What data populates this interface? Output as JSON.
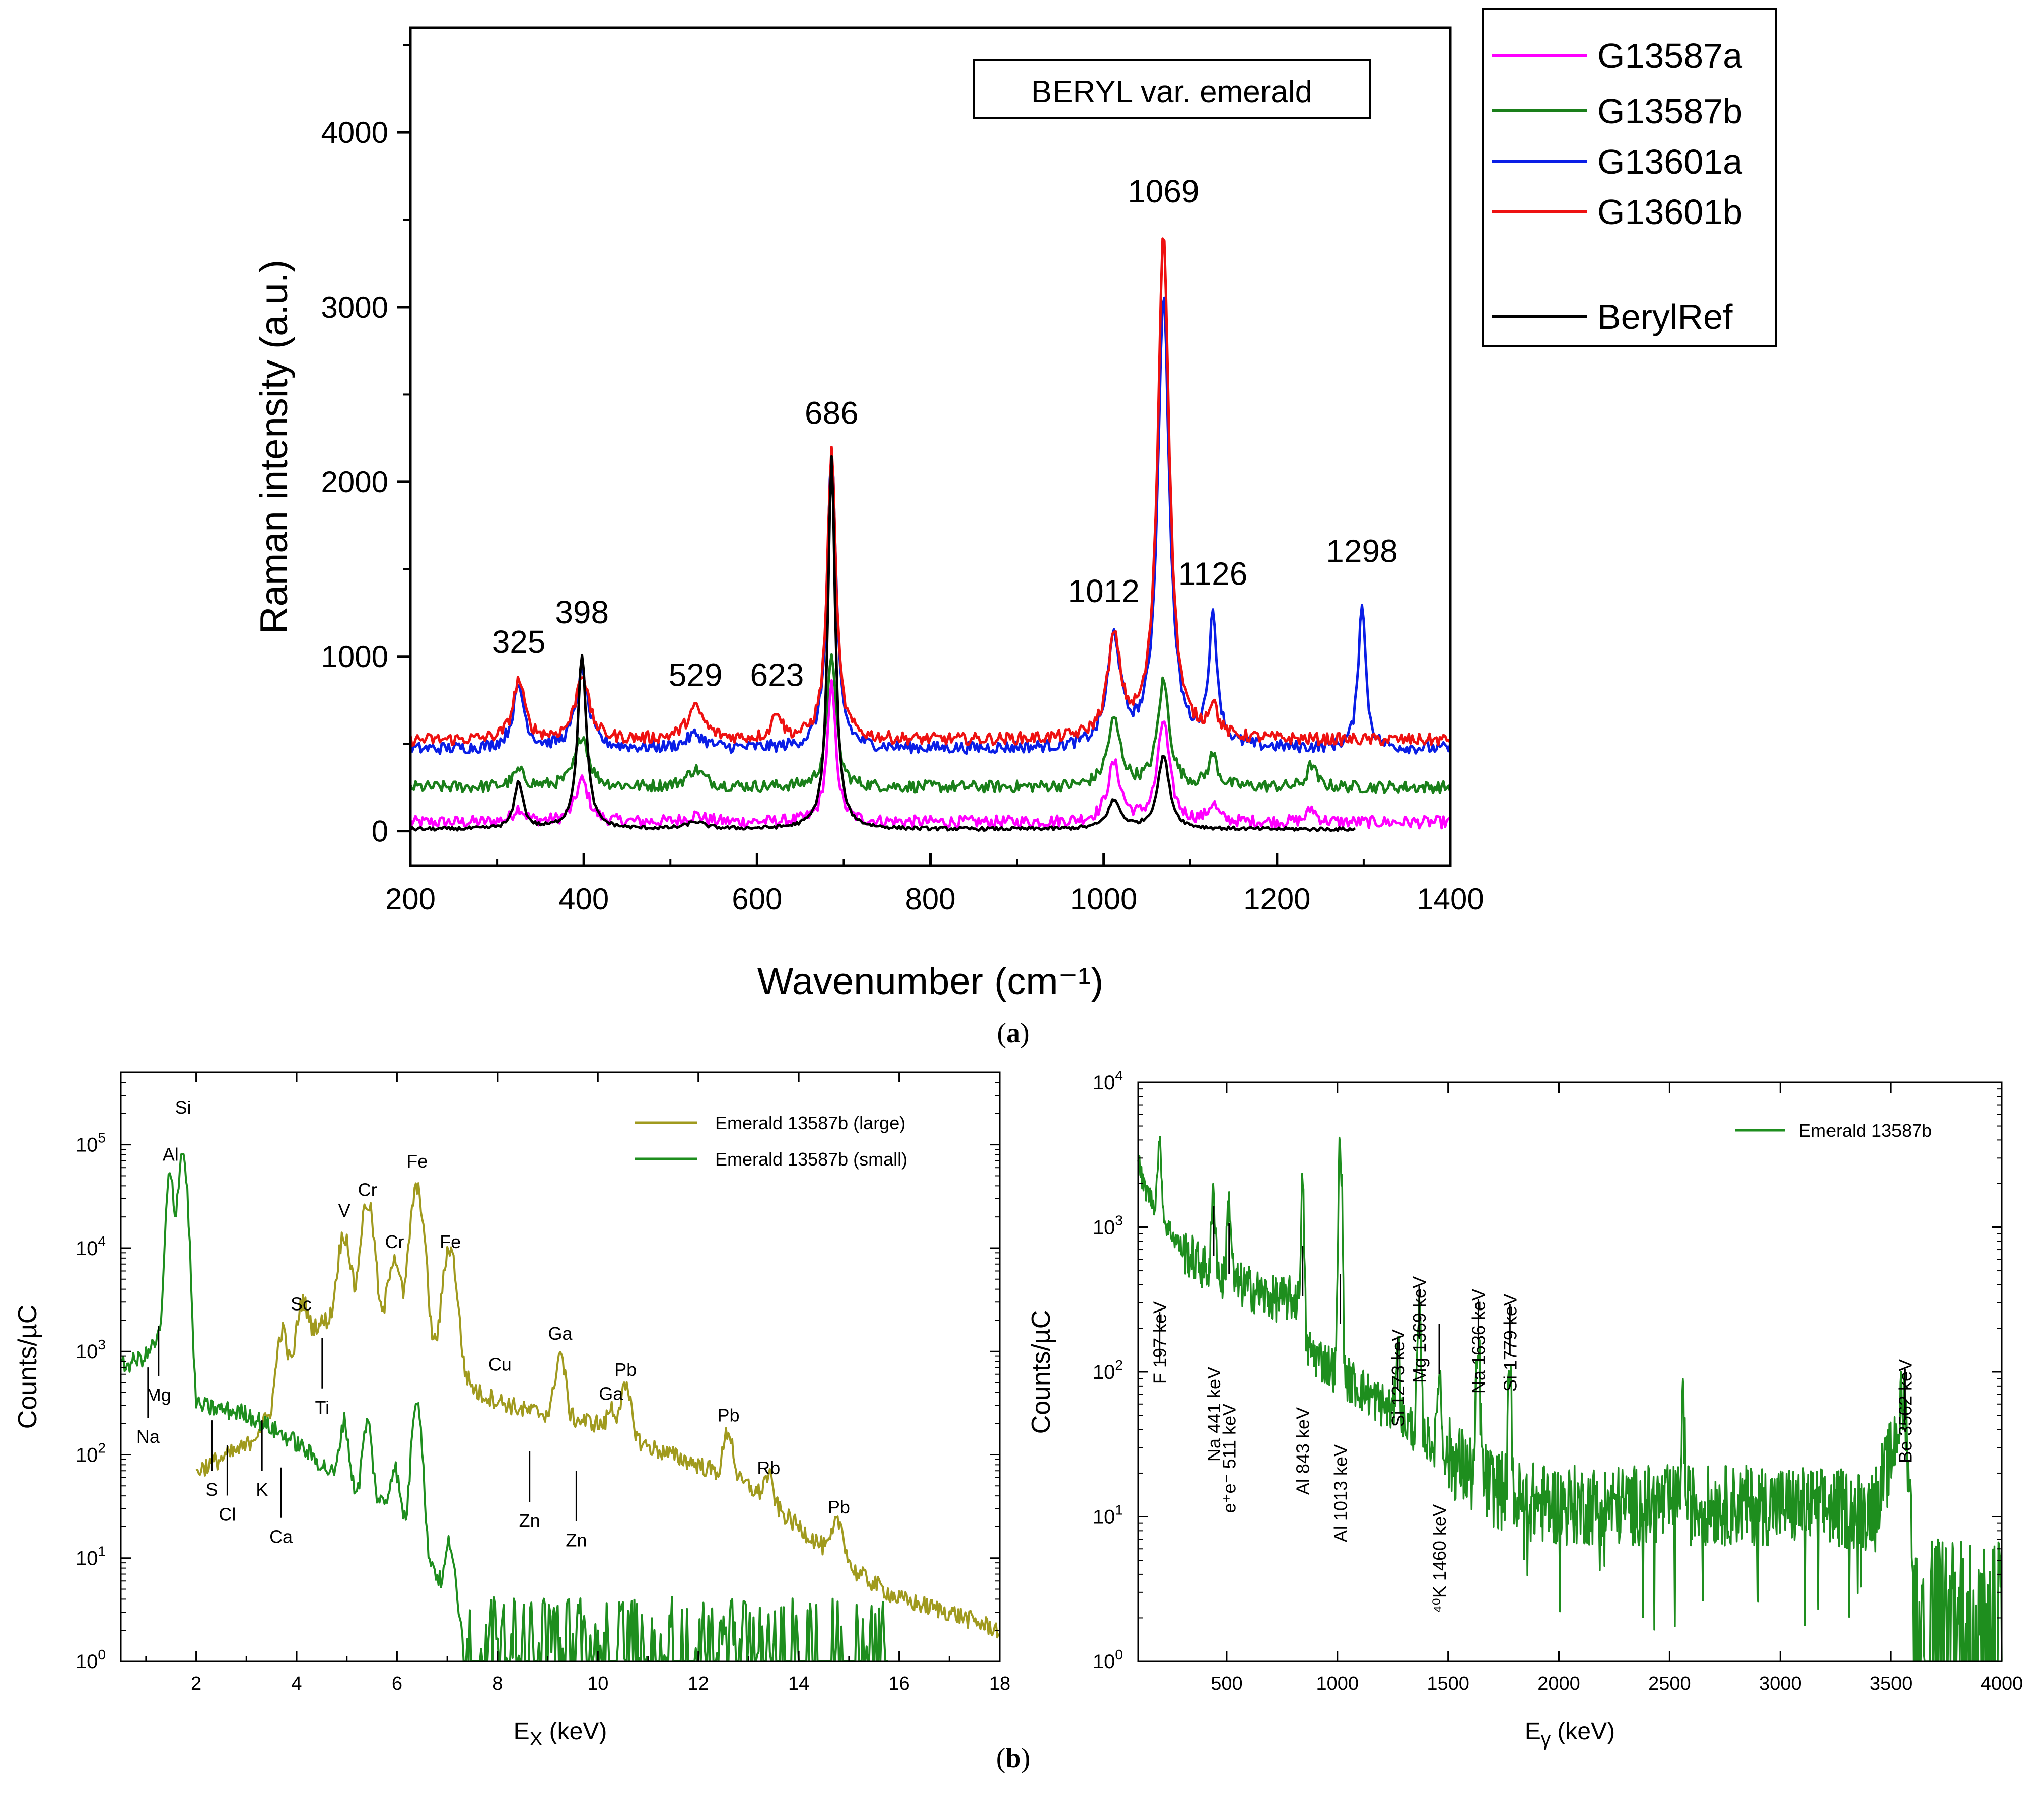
{
  "panels": {
    "a": "(a)",
    "b": "(b)",
    "bold": {
      "a": "a",
      "b": "b"
    }
  },
  "colors": {
    "G13587a": "#ff00ff",
    "G13587b": "#1a7f1a",
    "G13601a": "#0a1ee6",
    "G13601b": "#ee1111",
    "BerylRef": "#000000",
    "large": "#a09a1e",
    "small": "#1e8e1e",
    "gamma": "#1e8e1e"
  },
  "chart_data": [
    {
      "id": "raman",
      "type": "line",
      "title": "BERYL var. emerald",
      "xlabel": "Wavenumber (cm⁻¹)",
      "ylabel": "Raman intensity (a.u.)",
      "xlim": [
        200,
        1400
      ],
      "ylim": [
        -200,
        4600
      ],
      "xticks": [
        200,
        400,
        600,
        800,
        1000,
        1200,
        1400
      ],
      "yticks": [
        0,
        1000,
        2000,
        3000,
        4000
      ],
      "legend_position": "outside-right",
      "legend": [
        "G13587a",
        "G13587b",
        "G13601a",
        "G13601b",
        "BerylRef"
      ],
      "peak_labels": [
        {
          "text": "325",
          "x": 325,
          "y": 1020
        },
        {
          "text": "398",
          "x": 398,
          "y": 1190
        },
        {
          "text": "529",
          "x": 529,
          "y": 830
        },
        {
          "text": "623",
          "x": 623,
          "y": 830
        },
        {
          "text": "686",
          "x": 686,
          "y": 2330
        },
        {
          "text": "1012",
          "x": 1000,
          "y": 1310
        },
        {
          "text": "1069",
          "x": 1069,
          "y": 3600
        },
        {
          "text": "1126",
          "x": 1126,
          "y": 1410
        },
        {
          "text": "1298",
          "x": 1298,
          "y": 1540
        }
      ],
      "series": [
        {
          "name": "G13587a",
          "baseline": 50,
          "xmax": 1400,
          "peaks": [
            [
              325,
              80,
              8
            ],
            [
              398,
              240,
              9
            ],
            [
              529,
              40,
              12
            ],
            [
              686,
              780,
              6
            ],
            [
              1012,
              330,
              9
            ],
            [
              1069,
              580,
              8
            ],
            [
              1126,
              100,
              6
            ],
            [
              1240,
              80,
              6
            ]
          ]
        },
        {
          "name": "G13587b",
          "baseline": 250,
          "xmax": 1400,
          "peaks": [
            [
              325,
              90,
              8
            ],
            [
              398,
              300,
              9
            ],
            [
              529,
              100,
              12
            ],
            [
              686,
              780,
              6
            ],
            [
              1012,
              380,
              9
            ],
            [
              1069,
              600,
              8
            ],
            [
              1126,
              180,
              6
            ],
            [
              1240,
              130,
              6
            ]
          ]
        },
        {
          "name": "G13601a",
          "baseline": 470,
          "xmax": 1400,
          "peaks": [
            [
              325,
              350,
              8
            ],
            [
              398,
              420,
              9
            ],
            [
              529,
              80,
              12
            ],
            [
              686,
              1700,
              6
            ],
            [
              1012,
              620,
              9
            ],
            [
              1069,
              2580,
              8
            ],
            [
              1126,
              720,
              6
            ],
            [
              1298,
              850,
              5
            ]
          ]
        },
        {
          "name": "G13601b",
          "baseline": 520,
          "xmax": 1400,
          "peaks": [
            [
              325,
              340,
              8
            ],
            [
              398,
              380,
              9
            ],
            [
              529,
              180,
              12
            ],
            [
              623,
              160,
              6
            ],
            [
              686,
              1650,
              6
            ],
            [
              1012,
              560,
              9
            ],
            [
              1069,
              2900,
              8
            ],
            [
              1126,
              180,
              6
            ]
          ]
        },
        {
          "name": "BerylRef",
          "baseline": 10,
          "xmax": 1290,
          "peaks": [
            [
              325,
              270,
              6
            ],
            [
              398,
              1000,
              6
            ],
            [
              529,
              40,
              12
            ],
            [
              686,
              2130,
              5
            ],
            [
              1012,
              160,
              9
            ],
            [
              1069,
              420,
              8
            ]
          ]
        }
      ]
    },
    {
      "id": "xray",
      "type": "line",
      "xlabel": "E",
      "xlabel_sub": "X",
      "xlabel_unit": " (keV)",
      "ylabel": "Counts/µC",
      "xlim": [
        0.5,
        18
      ],
      "ylim_log10": [
        0,
        5.7
      ],
      "xticks": [
        2,
        4,
        6,
        8,
        10,
        12,
        14,
        16,
        18
      ],
      "yticks_log10": [
        0,
        1,
        2,
        3,
        4,
        5
      ],
      "tick_base": "10",
      "legend_position": "top-right",
      "legend": [
        "Emerald 13587b (large)",
        "Emerald 13587b (small)"
      ],
      "labels": [
        {
          "text": "Si",
          "x": 1.74,
          "y": 200000.0
        },
        {
          "text": "Al",
          "x": 1.49,
          "y": 70000.0
        },
        {
          "text": "Mg",
          "x": 1.25,
          "y": 330
        },
        {
          "text": "Na",
          "x": 1.04,
          "y": 130
        },
        {
          "text": "S",
          "x": 2.31,
          "y": 40
        },
        {
          "text": "Cl",
          "x": 2.62,
          "y": 23
        },
        {
          "text": "K",
          "x": 3.31,
          "y": 40
        },
        {
          "text": "Ca",
          "x": 3.69,
          "y": 14
        },
        {
          "text": "Sc",
          "x": 4.09,
          "y": 2500
        },
        {
          "text": "Ti",
          "x": 4.51,
          "y": 250
        },
        {
          "text": "V",
          "x": 4.95,
          "y": 20000
        },
        {
          "text": "Cr",
          "x": 5.41,
          "y": 32000
        },
        {
          "text": "Cr",
          "x": 5.95,
          "y": 10000
        },
        {
          "text": "Fe",
          "x": 6.4,
          "y": 60000
        },
        {
          "text": "Fe",
          "x": 7.06,
          "y": 10000
        },
        {
          "text": "Cu",
          "x": 8.05,
          "y": 650
        },
        {
          "text": "Zn",
          "x": 8.64,
          "y": 20
        },
        {
          "text": "Ga",
          "x": 9.25,
          "y": 1300
        },
        {
          "text": "Ga",
          "x": 10.26,
          "y": 340
        },
        {
          "text": "Zn",
          "x": 9.57,
          "y": 13
        },
        {
          "text": "Pb",
          "x": 10.55,
          "y": 580
        },
        {
          "text": "Pb",
          "x": 12.6,
          "y": 210
        },
        {
          "text": "Rb",
          "x": 13.4,
          "y": 65
        },
        {
          "text": "Pb",
          "x": 14.8,
          "y": 27
        }
      ],
      "series": [
        {
          "name": "Emerald 13587b (large)",
          "x_range": [
            2.0,
            18.0
          ],
          "anchors": [
            [
              2.0,
              70
            ],
            [
              3.0,
              120
            ],
            [
              3.6,
              300
            ],
            [
              4.2,
              1600
            ],
            [
              4.6,
              2000
            ],
            [
              5.5,
              1800
            ],
            [
              7.0,
              1000
            ],
            [
              7.6,
              400
            ],
            [
              8.5,
              270
            ],
            [
              9.0,
              250
            ],
            [
              10.0,
              200
            ],
            [
              11.0,
              120
            ],
            [
              12.0,
              80
            ],
            [
              13.0,
              50
            ],
            [
              14.0,
              20
            ],
            [
              15.0,
              8
            ],
            [
              16.0,
              4
            ],
            [
              17.0,
              3
            ],
            [
              18.0,
              2
            ]
          ],
          "peaks": [
            [
              3.69,
              3.0,
              0.08
            ],
            [
              4.09,
              1.5,
              0.08
            ],
            [
              4.95,
              6.0,
              0.1
            ],
            [
              5.41,
              14.0,
              0.1
            ],
            [
              5.95,
              4.5,
              0.1
            ],
            [
              6.4,
              28.0,
              0.1
            ],
            [
              7.06,
              10.0,
              0.1
            ],
            [
              9.25,
              3.0,
              0.08
            ],
            [
              10.55,
              1.8,
              0.1
            ],
            [
              10.26,
              0.6,
              0.06
            ],
            [
              12.6,
              1.8,
              0.08
            ],
            [
              13.4,
              0.8,
              0.08
            ],
            [
              14.8,
              1.3,
              0.1
            ]
          ]
        },
        {
          "name": "Emerald 13587b (small)",
          "x_range": [
            0.5,
            15.8
          ],
          "anchors": [
            [
              0.5,
              700
            ],
            [
              1.0,
              900
            ],
            [
              1.3,
              1500
            ],
            [
              2.0,
              300
            ],
            [
              3.0,
              250
            ],
            [
              4.0,
              130
            ],
            [
              5.0,
              50
            ],
            [
              6.0,
              30
            ],
            [
              6.5,
              15
            ],
            [
              7.0,
              4
            ],
            [
              7.5,
              1.3
            ],
            [
              8.0,
              0.8
            ],
            [
              12.0,
              0.7
            ],
            [
              15.8,
              0.6
            ]
          ],
          "peaks": [
            [
              1.49,
              50.0,
              0.06
            ],
            [
              1.74,
              150.0,
              0.07
            ],
            [
              4.95,
              3.0,
              0.07
            ],
            [
              5.41,
              4.0,
              0.07
            ],
            [
              5.95,
              1.5,
              0.07
            ],
            [
              6.4,
              20.0,
              0.07
            ],
            [
              7.06,
              3.0,
              0.07
            ]
          ]
        }
      ]
    },
    {
      "id": "gamma",
      "type": "line",
      "xlabel": "E",
      "xlabel_sub": "γ",
      "xlabel_unit": " (keV)",
      "ylabel": "Counts/µC",
      "xlim": [
        100,
        4000
      ],
      "ylim_log10": [
        0,
        4
      ],
      "xticks": [
        500,
        1000,
        1500,
        2000,
        2500,
        3000,
        3500,
        4000
      ],
      "yticks_log10": [
        0,
        1,
        2,
        3,
        4
      ],
      "tick_base": "10",
      "legend_position": "top-right",
      "legend": [
        "Emerald 13587b"
      ],
      "labels": [
        {
          "text": "F 197 keV",
          "x": 197
        },
        {
          "text": "Na 441 keV",
          "x": 441
        },
        {
          "text": "e⁺e⁻ 511 keV",
          "x": 511
        },
        {
          "text": "Al 843 keV",
          "x": 843
        },
        {
          "text": "Al 1013 keV",
          "x": 1013
        },
        {
          "text": "Si 1273 keV",
          "x": 1273
        },
        {
          "text": "Mg 1369 keV",
          "x": 1369
        },
        {
          "text": "⁴⁰K 1460 keV",
          "x": 1460
        },
        {
          "text": "Na 1636 keV",
          "x": 1636
        },
        {
          "text": "Si 1779 keV",
          "x": 1779
        },
        {
          "text": "Be 3562 keV",
          "x": 3562
        }
      ],
      "series": [
        {
          "name": "Emerald 13587b",
          "x_range": [
            100,
            4000
          ],
          "anchors": [
            [
              100,
              3000
            ],
            [
              120,
              2000
            ],
            [
              200,
              1200
            ],
            [
              300,
              700
            ],
            [
              450,
              450
            ],
            [
              600,
              380
            ],
            [
              700,
              320
            ],
            [
              820,
              320
            ],
            [
              850,
              150
            ],
            [
              1000,
              100
            ],
            [
              1200,
              60
            ],
            [
              1400,
              35
            ],
            [
              1600,
              20
            ],
            [
              1800,
              13
            ],
            [
              2000,
              12
            ],
            [
              2500,
              12
            ],
            [
              3000,
              12
            ],
            [
              3400,
              11
            ],
            [
              3480,
              20
            ],
            [
              3560,
              30
            ],
            [
              3600,
              3
            ],
            [
              4000,
              3
            ]
          ],
          "peaks": [
            [
              197,
              2.0,
              8
            ],
            [
              441,
              2.5,
              8
            ],
            [
              511,
              2.5,
              8
            ],
            [
              843,
              9.0,
              6
            ],
            [
              1013,
              40.0,
              6
            ],
            [
              1273,
              2.5,
              7
            ],
            [
              1369,
              5.0,
              7
            ],
            [
              1460,
              2.5,
              7
            ],
            [
              1636,
              6.0,
              7
            ],
            [
              1779,
              5.0,
              7
            ],
            [
              2560,
              4.0,
              6
            ],
            [
              3562,
              1.2,
              30
            ]
          ]
        }
      ]
    }
  ]
}
